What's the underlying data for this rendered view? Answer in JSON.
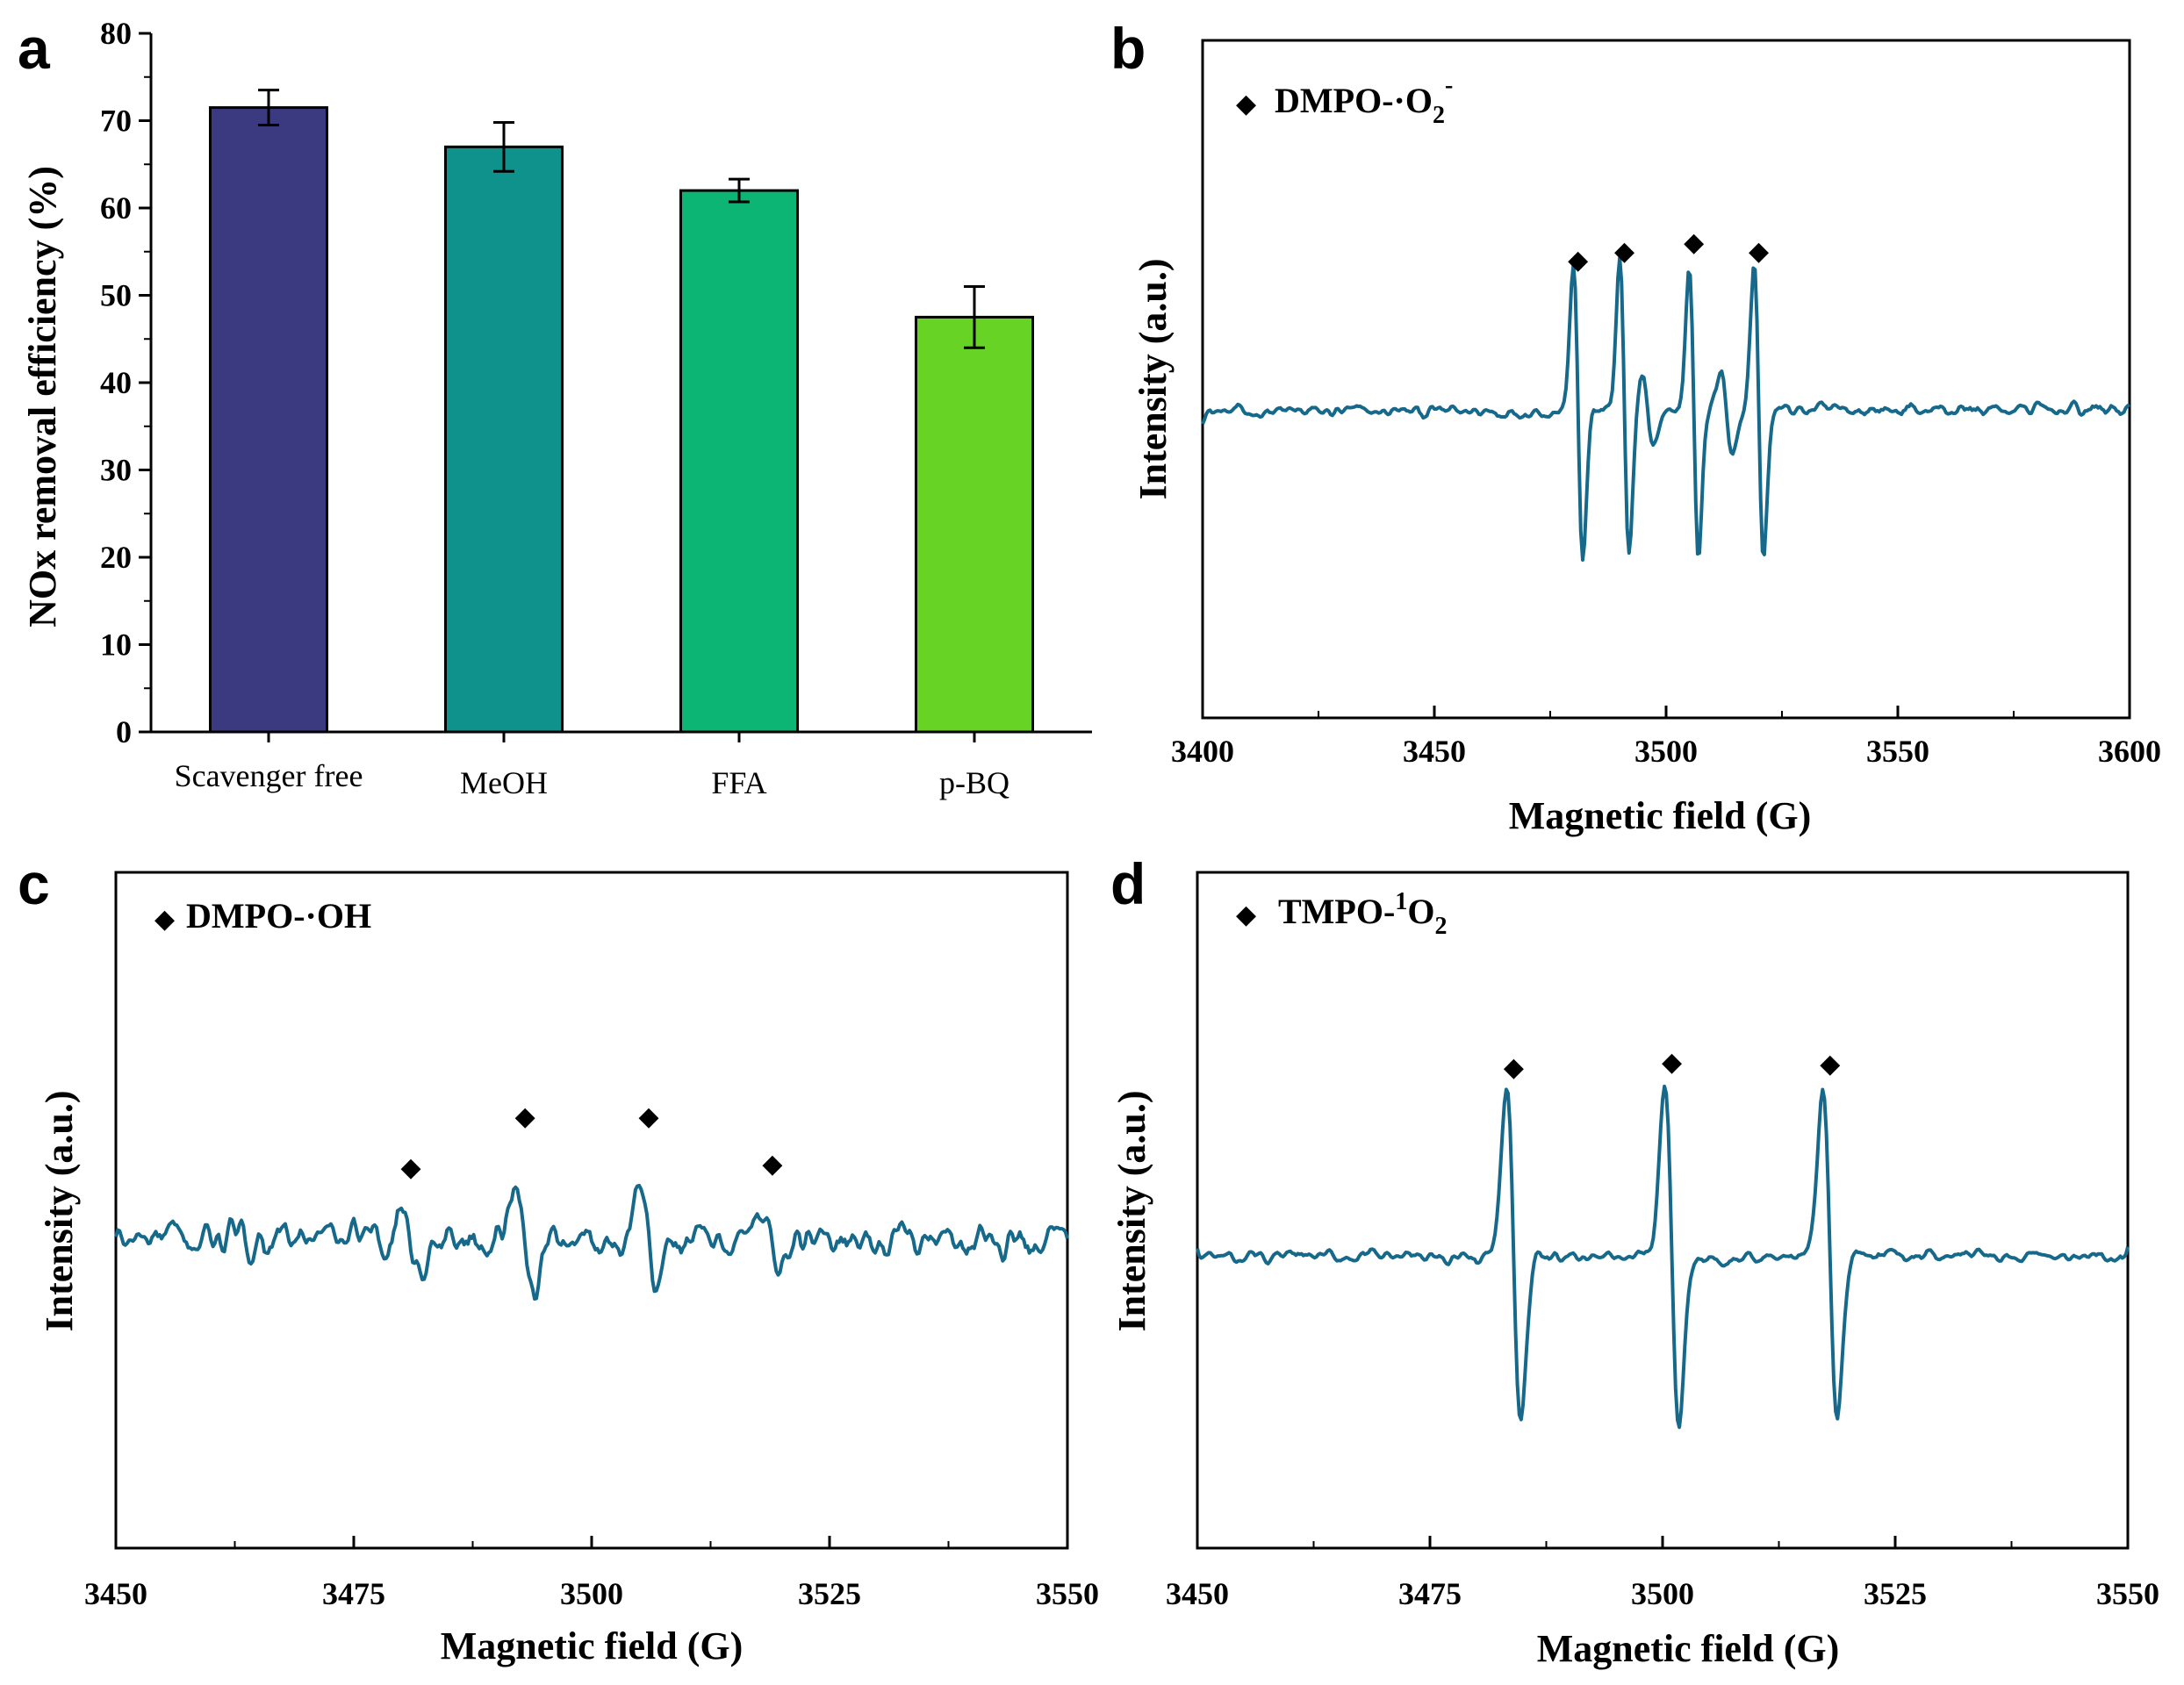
{
  "colors": {
    "bar_scavenger_free": "#3b3a80",
    "bar_meoh": "#0f918c",
    "bar_ffa": "#0cb573",
    "bar_pbq": "#66d325",
    "epr_line": "#16698a"
  },
  "panels": {
    "a": {
      "letter": "a"
    },
    "b": {
      "letter": "b"
    },
    "c": {
      "letter": "c"
    },
    "d": {
      "letter": "d"
    }
  },
  "chart_data": [
    {
      "panel": "a",
      "type": "bar",
      "ylabel": "NOx removal efficiency (%)",
      "xlabel": "",
      "categories": [
        "Scavenger free",
        "MeOH",
        "FFA",
        "p-BQ"
      ],
      "values": [
        71.5,
        67.0,
        62.0,
        47.5
      ],
      "errors": [
        2.0,
        2.8,
        1.3,
        3.5
      ],
      "ylim": [
        0,
        80
      ],
      "yticks": [
        "0",
        "10",
        "20",
        "30",
        "40",
        "50",
        "60",
        "70",
        "80"
      ],
      "legend": "none",
      "grid": false
    },
    {
      "panel": "b",
      "type": "line",
      "xlabel": "Magnetic field (G)",
      "ylabel": "Intensity (a.u.)",
      "xlim": [
        3400,
        3600
      ],
      "xticks": [
        "3400",
        "3450",
        "3500",
        "3550",
        "3600"
      ],
      "series": [
        {
          "name": "DMPO-·O2-"
        }
      ],
      "legend": {
        "main": "DMPO-·O",
        "sub": "2",
        "sup": "-",
        "position": "top-left"
      },
      "peak_markers_x": [
        3481,
        3491,
        3506,
        3520
      ],
      "baseline_x_range": [
        3400,
        3600
      ],
      "grid": false
    },
    {
      "panel": "c",
      "type": "line",
      "xlabel": "Magnetic field (G)",
      "ylabel": "Intensity (a.u.)",
      "xlim": [
        3450,
        3550
      ],
      "xticks": [
        "3450",
        "3475",
        "3500",
        "3525",
        "3550"
      ],
      "series": [
        {
          "name": "DMPO-·OH"
        }
      ],
      "legend": {
        "main": "DMPO-·OH",
        "position": "top-left"
      },
      "peak_markers_x": [
        3481,
        3493,
        3506,
        3519
      ],
      "grid": false
    },
    {
      "panel": "d",
      "type": "line",
      "xlabel": "Magnetic field (G)",
      "ylabel": "Intensity (a.u.)",
      "xlim": [
        3450,
        3550
      ],
      "xticks": [
        "3450",
        "3475",
        "3500",
        "3525",
        "3550"
      ],
      "series": [
        {
          "name": "TMPO-1O2"
        }
      ],
      "legend": {
        "main": "TMPO-",
        "sup": "1",
        "main2": "O",
        "sub": "2",
        "position": "top-left"
      },
      "peak_markers_x": [
        3484,
        3501,
        3518
      ],
      "grid": false
    }
  ]
}
